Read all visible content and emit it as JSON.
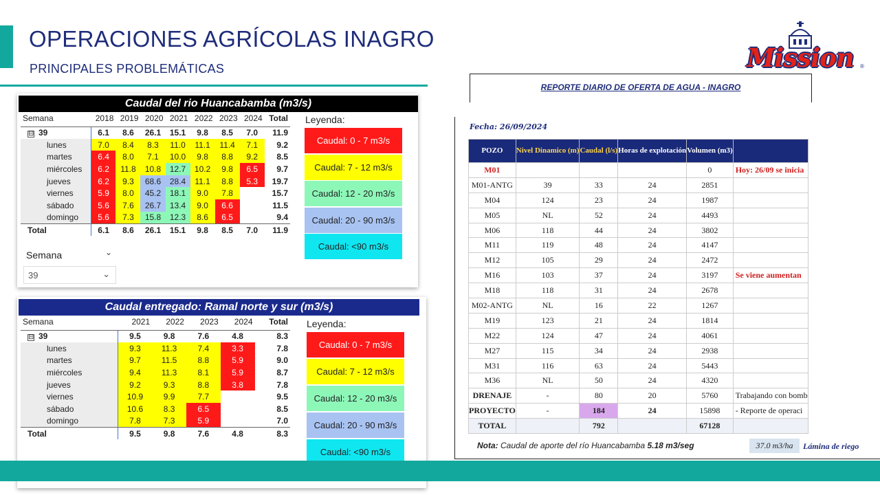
{
  "slide": {
    "title": "OPERACIONES AGRÍCOLAS INAGRO",
    "subtitle": "PRINCIPALES PROBLEMÁTICAS",
    "accent_color": "#13a89e",
    "title_color": "#1f2d7a"
  },
  "logo": {
    "text": "Mission",
    "reg": "®"
  },
  "panel1": {
    "title": "Caudal del rio Huancabamba (m3/s)",
    "header_label": "Semana",
    "years": [
      "2018",
      "2019",
      "2020",
      "2021",
      "2022",
      "2023",
      "2024"
    ],
    "total_label": "Total",
    "expander": "⊟",
    "week": {
      "label": "39",
      "values": [
        "6.1",
        "8.6",
        "26.1",
        "15.1",
        "9.8",
        "8.5",
        "7.0"
      ],
      "total": "11.9"
    },
    "days": [
      {
        "label": "lunes",
        "values": [
          "7.0",
          "8.4",
          "8.3",
          "11.0",
          "11.1",
          "11.4",
          "7.1"
        ],
        "total": "9.2"
      },
      {
        "label": "martes",
        "values": [
          "6.4",
          "8.0",
          "7.1",
          "10.0",
          "9.8",
          "8.8",
          "9.2"
        ],
        "total": "8.5"
      },
      {
        "label": "miércoles",
        "values": [
          "6.2",
          "11.8",
          "10.8",
          "12.7",
          "10.2",
          "9.8",
          "6.5"
        ],
        "total": "9.7"
      },
      {
        "label": "jueves",
        "values": [
          "6.2",
          "9.3",
          "68.6",
          "28.4",
          "11.1",
          "8.8",
          "5.3"
        ],
        "total": "19.7"
      },
      {
        "label": "viernes",
        "values": [
          "5.9",
          "8.0",
          "45.2",
          "18.1",
          "9.0",
          "7.8",
          ""
        ],
        "total": "15.7"
      },
      {
        "label": "sábado",
        "values": [
          "5.6",
          "7.6",
          "26.7",
          "13.4",
          "9.0",
          "6.6",
          ""
        ],
        "total": "11.5"
      },
      {
        "label": "domingo",
        "values": [
          "5.6",
          "7.3",
          "15.8",
          "12.3",
          "8.6",
          "6.5",
          ""
        ],
        "total": "9.4"
      }
    ],
    "total_row": {
      "label": "Total",
      "values": [
        "6.1",
        "8.6",
        "26.1",
        "15.1",
        "9.8",
        "8.5",
        "7.0"
      ],
      "total": "11.9"
    },
    "legend_title": "Leyenda:",
    "slicer": {
      "label": "Semana",
      "value": "39",
      "chevron": "⌄"
    }
  },
  "panel2": {
    "title": "Caudal entregado: Ramal norte y sur (m3/s)",
    "header_label": "Semana",
    "years": [
      "2021",
      "2022",
      "2023",
      "2024"
    ],
    "total_label": "Total",
    "expander": "⊟",
    "week": {
      "label": "39",
      "values": [
        "9.5",
        "9.8",
        "7.6",
        "4.8"
      ],
      "total": "8.3"
    },
    "days": [
      {
        "label": "lunes",
        "values": [
          "9.3",
          "11.3",
          "7.4",
          "3.3"
        ],
        "total": "7.8"
      },
      {
        "label": "martes",
        "values": [
          "9.7",
          "11.5",
          "8.8",
          "5.9"
        ],
        "total": "9.0"
      },
      {
        "label": "miércoles",
        "values": [
          "9.4",
          "11.3",
          "8.1",
          "5.9"
        ],
        "total": "8.7"
      },
      {
        "label": "jueves",
        "values": [
          "9.2",
          "9.3",
          "8.8",
          "3.8"
        ],
        "total": "7.8"
      },
      {
        "label": "viernes",
        "values": [
          "10.9",
          "9.9",
          "7.7",
          ""
        ],
        "total": "9.5"
      },
      {
        "label": "sábado",
        "values": [
          "10.6",
          "8.3",
          "6.5",
          ""
        ],
        "total": "8.5"
      },
      {
        "label": "domingo",
        "values": [
          "7.8",
          "7.3",
          "5.9",
          ""
        ],
        "total": "7.0"
      }
    ],
    "total_row": {
      "label": "Total",
      "values": [
        "9.5",
        "9.8",
        "7.6",
        "4.8"
      ],
      "total": "8.3"
    },
    "legend_title": "Leyenda:"
  },
  "legend": [
    {
      "label": "Caudal: 0 - 7 m3/s",
      "color": "#ff1a1a"
    },
    {
      "label": "Caudal: 7 - 12 m3/s",
      "color": "#ffff00"
    },
    {
      "label": "Caudal: 12 - 20 m3/s",
      "color": "#8df7b8"
    },
    {
      "label": "Caudal: 20 - 90 m3/s",
      "color": "#a8c3f2"
    },
    {
      "label": "Caudal: <90 m3/s",
      "color": "#10e6f0"
    }
  ],
  "report": {
    "title": "REPORTE DIARIO DE OFERTA DE AGUA - INAGRO",
    "fecha": "Fecha: 26/09/2024",
    "headers": [
      "POZO",
      "Nivel Dinamico (m)",
      "Caudal (l/s)",
      "Horas de explotación",
      "Volumen (m3)",
      ""
    ],
    "rows": [
      {
        "pozo": "M01",
        "nivel": "",
        "caudal": "",
        "horas": "",
        "volumen": "0",
        "obs": "Hoy: 26/09 se inicia"
      },
      {
        "pozo": "M01-ANTG",
        "nivel": "39",
        "caudal": "33",
        "horas": "24",
        "volumen": "2851",
        "obs": ""
      },
      {
        "pozo": "M04",
        "nivel": "124",
        "caudal": "23",
        "horas": "24",
        "volumen": "1987",
        "obs": ""
      },
      {
        "pozo": "M05",
        "nivel": "NL",
        "caudal": "52",
        "horas": "24",
        "volumen": "4493",
        "obs": ""
      },
      {
        "pozo": "M06",
        "nivel": "118",
        "caudal": "44",
        "horas": "24",
        "volumen": "3802",
        "obs": ""
      },
      {
        "pozo": "M11",
        "nivel": "119",
        "caudal": "48",
        "horas": "24",
        "volumen": "4147",
        "obs": ""
      },
      {
        "pozo": "M12",
        "nivel": "105",
        "caudal": "29",
        "horas": "24",
        "volumen": "2472",
        "obs": ""
      },
      {
        "pozo": "M16",
        "nivel": "103",
        "caudal": "37",
        "horas": "24",
        "volumen": "3197",
        "obs": "Se viene aumentan"
      },
      {
        "pozo": "M18",
        "nivel": "118",
        "caudal": "31",
        "horas": "24",
        "volumen": "2678",
        "obs": ""
      },
      {
        "pozo": "M02-ANTG",
        "nivel": "NL",
        "caudal": "16",
        "horas": "22",
        "volumen": "1267",
        "obs": ""
      },
      {
        "pozo": "M19",
        "nivel": "123",
        "caudal": "21",
        "horas": "24",
        "volumen": "1814",
        "obs": ""
      },
      {
        "pozo": "M22",
        "nivel": "124",
        "caudal": "47",
        "horas": "24",
        "volumen": "4061",
        "obs": ""
      },
      {
        "pozo": "M27",
        "nivel": "115",
        "caudal": "34",
        "horas": "24",
        "volumen": "2938",
        "obs": ""
      },
      {
        "pozo": "M31",
        "nivel": "116",
        "caudal": "63",
        "horas": "24",
        "volumen": "5443",
        "obs": ""
      },
      {
        "pozo": "M36",
        "nivel": "NL",
        "caudal": "50",
        "horas": "24",
        "volumen": "4320",
        "obs": ""
      },
      {
        "pozo": "DRENAJE",
        "nivel": "-",
        "caudal": "80",
        "horas": "20",
        "volumen": "5760",
        "obs": "Trabajando con bomb"
      },
      {
        "pozo": "PROYECTO",
        "nivel": "-",
        "caudal": "184",
        "horas": "24",
        "volumen": "15898",
        "obs": " - Reporte de operaci"
      }
    ],
    "total": {
      "pozo": "TOTAL",
      "caudal": "792",
      "volumen": "67128"
    },
    "note_prefix": "Nota:",
    "note_text": " Caudal de aporte del río Huancabamba ",
    "note_value": "5.18 m3/seg",
    "lamina_value": "37.0 m3/ha",
    "lamina_label": "Lámina de riego"
  }
}
